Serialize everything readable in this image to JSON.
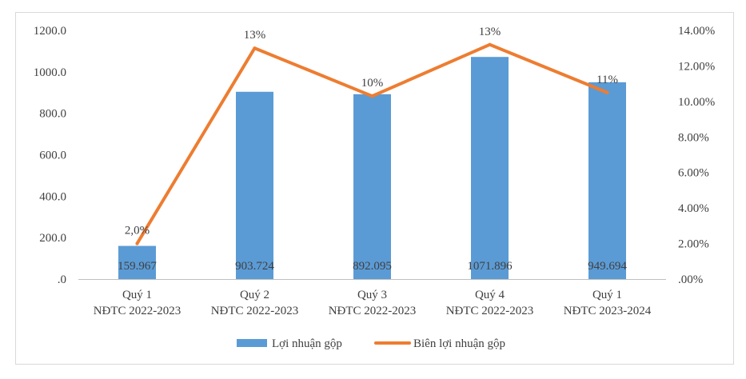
{
  "chart_data": {
    "type": "bar",
    "categories": [
      [
        "Quý 1",
        "NĐTC 2022-2023"
      ],
      [
        "Quý 2",
        "NĐTC 2022-2023"
      ],
      [
        "Quý 3",
        "NĐTC 2022-2023"
      ],
      [
        "Quý 4",
        "NĐTC 2022-2023"
      ],
      [
        "Quý 1",
        "NĐTC 2023-2024"
      ]
    ],
    "series": [
      {
        "name": "Lợi nhuận gộp",
        "type": "bar",
        "axis": "left",
        "color": "#5B9BD5",
        "values": [
          159.967,
          903.724,
          892.095,
          1071.896,
          949.694
        ],
        "labels": [
          "159.967",
          "903.724",
          "892.095",
          "1071.896",
          "949.694"
        ]
      },
      {
        "name": "Biên lợi nhuận gộp",
        "type": "line",
        "axis": "right",
        "color": "#ED7D31",
        "values": [
          2.0,
          13.0,
          10.3,
          13.2,
          10.5
        ],
        "labels": [
          "2,0%",
          "13%",
          "10%",
          "13%",
          "11%"
        ]
      }
    ],
    "y_left": {
      "ylim": [
        0,
        1200
      ],
      "ticks": [
        0,
        200,
        400,
        600,
        800,
        1000,
        1200
      ],
      "tick_labels": [
        ".0",
        "200.0",
        "400.0",
        "600.0",
        "800.0",
        "1000.0",
        "1200.0"
      ]
    },
    "y_right": {
      "ylim": [
        0,
        14
      ],
      "ticks": [
        0,
        2,
        4,
        6,
        8,
        10,
        12,
        14
      ],
      "tick_labels": [
        ".00%",
        "2.00%",
        "4.00%",
        "6.00%",
        "8.00%",
        "10.00%",
        "12.00%",
        "14.00%"
      ]
    },
    "grid": false,
    "legend_position": "bottom"
  }
}
